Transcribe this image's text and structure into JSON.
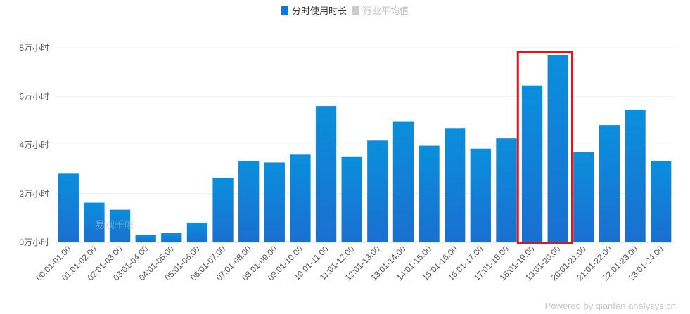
{
  "legend": {
    "primary_label": "分时使用时长",
    "secondary_label": "行业平均值"
  },
  "watermark": "易观千帆",
  "footer": "Powered by qianfan.analysys.cn",
  "colors": {
    "bar_top": "#0a8fdc",
    "bar_bottom": "#1a6fd0",
    "legend_primary": "#1677d2",
    "legend_secondary": "#cccccc",
    "highlight": "#d6181f",
    "grid": "#eeeeee",
    "axis_text": "#555555"
  },
  "chart_data": {
    "type": "bar",
    "categories": [
      "00:01-01:00",
      "01:01-02:00",
      "02:01-03:00",
      "03:01-04:00",
      "04:01-05:00",
      "05:01-06:00",
      "06:01-07:00",
      "07:01-08:00",
      "08:01-09:00",
      "09:01-10:00",
      "10:01-11:00",
      "11:01-12:00",
      "12:01-13:00",
      "13:01-14:00",
      "14:01-15:00",
      "15:01-16:00",
      "16:01-17:00",
      "17:01-18:00",
      "18:01-19:00",
      "19:01-20:00",
      "20:01-21:00",
      "21:01-22:00",
      "22:01-23:00",
      "23:01-24:00"
    ],
    "series": [
      {
        "name": "分时使用时长",
        "values": [
          28500,
          16300,
          13400,
          3200,
          3800,
          8100,
          26500,
          33500,
          32800,
          36300,
          56000,
          35300,
          41800,
          49800,
          39700,
          47000,
          38500,
          42700,
          64500,
          77000,
          37000,
          48200,
          54600,
          33500
        ]
      }
    ],
    "yticks": [
      "0万小时",
      "2万小时",
      "4万小时",
      "6万小时",
      "8万小时"
    ],
    "ylim": [
      0,
      80000
    ],
    "grid": true,
    "legend_position": "top-center",
    "highlighted_categories": [
      "18:01-19:00",
      "19:01-20:00"
    ]
  }
}
